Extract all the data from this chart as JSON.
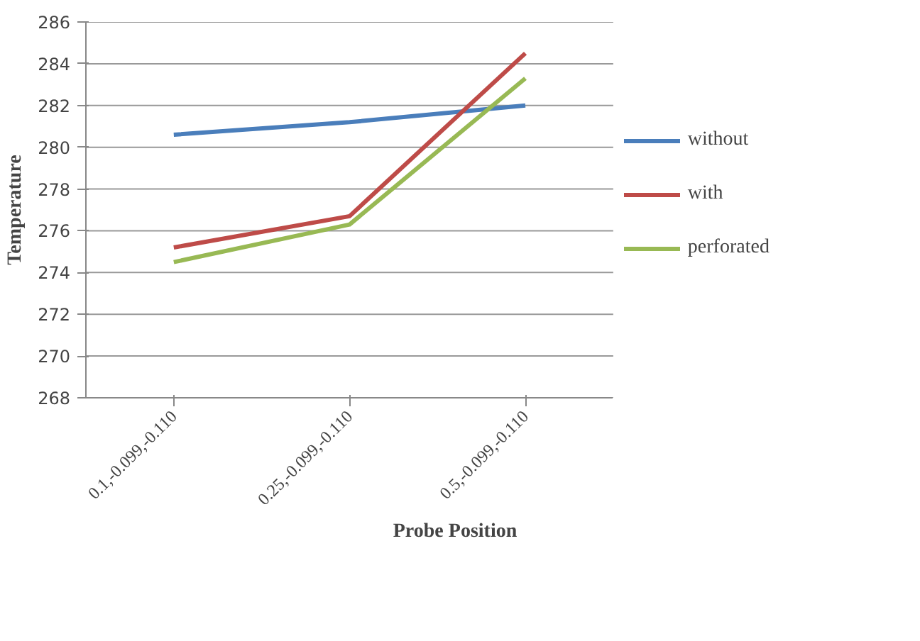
{
  "chart_data": {
    "type": "line",
    "xlabel": "Probe Position",
    "ylabel": "Temperature",
    "categories": [
      "0.1,-0.099,-0.110",
      "0.25,-0.099,-0.110",
      "0.5,-0.099,-0.110"
    ],
    "series": [
      {
        "name": "without",
        "color": "#4a7ebb",
        "values": [
          280.6,
          281.2,
          282.0
        ]
      },
      {
        "name": "with",
        "color": "#be4b48",
        "values": [
          275.2,
          276.7,
          284.5
        ]
      },
      {
        "name": "perforated",
        "color": "#98b954",
        "values": [
          274.5,
          276.3,
          283.3
        ]
      }
    ],
    "ylim": [
      268,
      286
    ],
    "yticks": [
      268,
      270,
      272,
      274,
      276,
      278,
      280,
      282,
      284,
      286
    ],
    "grid": "y",
    "legend": "right",
    "marker": "none",
    "line_style": "solid"
  }
}
